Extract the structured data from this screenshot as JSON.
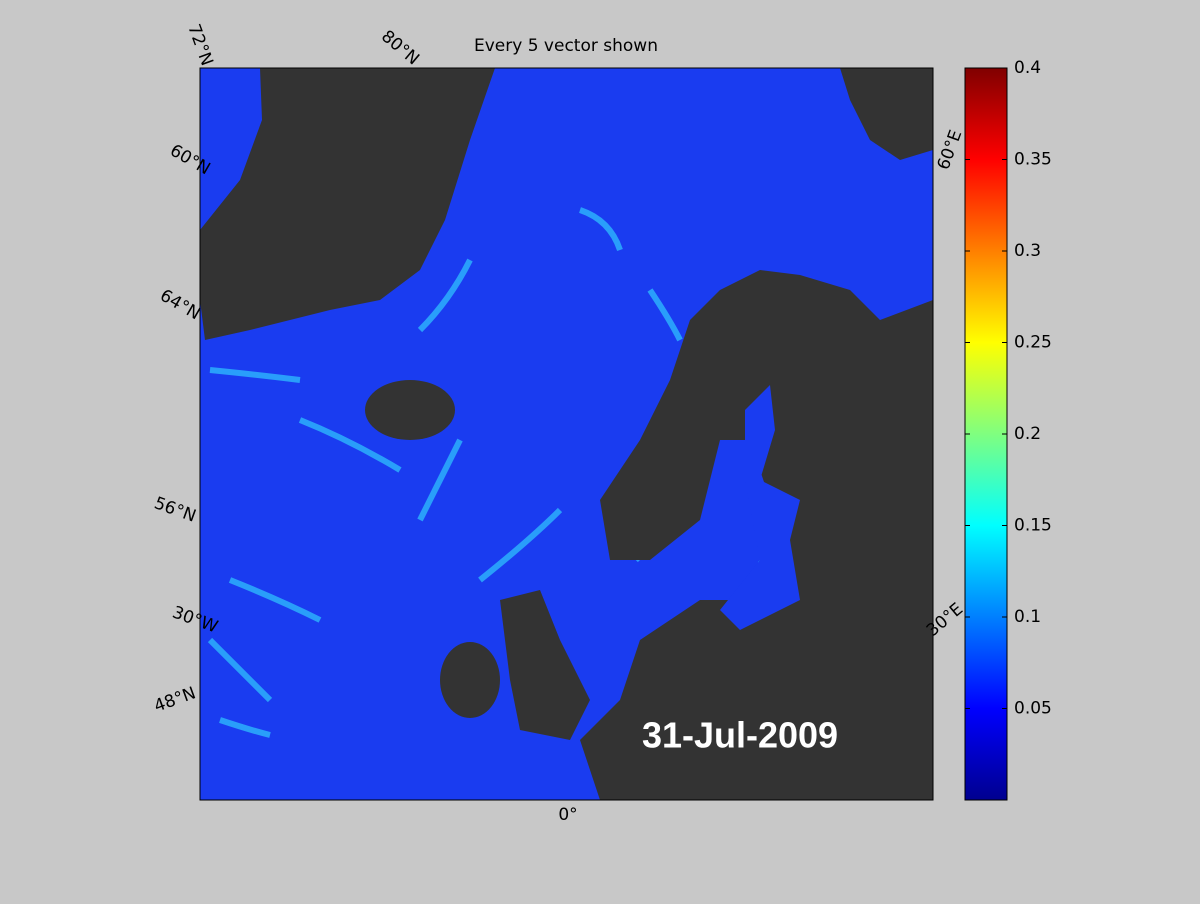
{
  "title": "Every 5 vector shown",
  "date_label": "31-Jul-2009",
  "graticule_labels": [
    "72°N",
    "80°N",
    "60°N",
    "60°E",
    "64°N",
    "56°N",
    "30°W",
    "48°N",
    "30°E",
    "0°"
  ],
  "colorbar": {
    "lim": [
      0,
      0.4
    ],
    "ticks": [
      0.05,
      0.1,
      0.15,
      0.2,
      0.25,
      0.3,
      0.35,
      0.4
    ]
  }
}
